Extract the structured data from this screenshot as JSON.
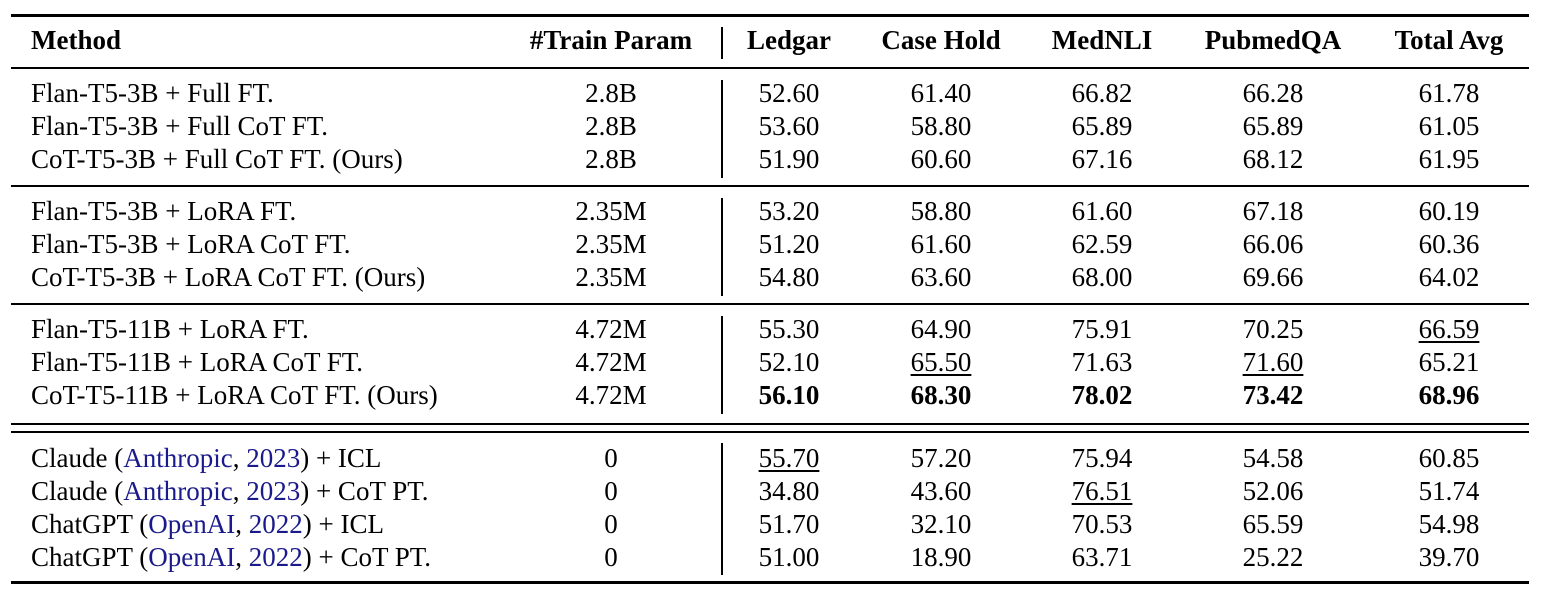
{
  "table": {
    "header": [
      "Method",
      "#Train Param",
      "Ledgar",
      "Case Hold",
      "MedNLI",
      "PubmedQA",
      "Total Avg"
    ],
    "groups": [
      [
        {
          "method": [
            {
              "t": "Flan-T5-3B + Full FT."
            }
          ],
          "param": "2.8B",
          "values": [
            "52.60",
            "61.40",
            "66.82",
            "66.28",
            "61.78"
          ]
        },
        {
          "method": [
            {
              "t": "Flan-T5-3B + Full CoT FT."
            }
          ],
          "param": "2.8B",
          "values": [
            "53.60",
            "58.80",
            "65.89",
            "65.89",
            "61.05"
          ]
        },
        {
          "method": [
            {
              "t": "CoT-T5-3B + Full CoT FT. (Ours)"
            }
          ],
          "param": "2.8B",
          "values": [
            "51.90",
            "60.60",
            "67.16",
            "68.12",
            "61.95"
          ]
        }
      ],
      [
        {
          "method": [
            {
              "t": "Flan-T5-3B + LoRA FT."
            }
          ],
          "param": "2.35M",
          "values": [
            "53.20",
            "58.80",
            "61.60",
            "67.18",
            "60.19"
          ]
        },
        {
          "method": [
            {
              "t": "Flan-T5-3B + LoRA CoT FT."
            }
          ],
          "param": "2.35M",
          "values": [
            "51.20",
            "61.60",
            "62.59",
            "66.06",
            "60.36"
          ]
        },
        {
          "method": [
            {
              "t": "CoT-T5-3B + LoRA CoT FT. (Ours)"
            }
          ],
          "param": "2.35M",
          "values": [
            "54.80",
            "63.60",
            "68.00",
            "69.66",
            "64.02"
          ]
        }
      ],
      [
        {
          "method": [
            {
              "t": "Flan-T5-11B + LoRA FT."
            }
          ],
          "param": "4.72M",
          "values": [
            "55.30",
            "64.90",
            "75.91",
            "70.25",
            "66.59"
          ],
          "underline": [
            4
          ]
        },
        {
          "method": [
            {
              "t": "Flan-T5-11B + LoRA CoT FT."
            }
          ],
          "param": "4.72M",
          "values": [
            "52.10",
            "65.50",
            "71.63",
            "71.60",
            "65.21"
          ],
          "underline": [
            1,
            3
          ]
        },
        {
          "method": [
            {
              "t": "CoT-T5-11B + LoRA CoT FT. (Ours)"
            }
          ],
          "param": "4.72M",
          "values": [
            "56.10",
            "68.30",
            "78.02",
            "73.42",
            "68.96"
          ],
          "bold": [
            0,
            1,
            2,
            3,
            4
          ]
        }
      ],
      [
        {
          "method": [
            {
              "t": "Claude ("
            },
            {
              "t": "Anthropic",
              "cite": true
            },
            {
              "t": ", "
            },
            {
              "t": "2023",
              "cite": true
            },
            {
              "t": ") + ICL"
            }
          ],
          "param": "0",
          "values": [
            "55.70",
            "57.20",
            "75.94",
            "54.58",
            "60.85"
          ],
          "underline": [
            0
          ]
        },
        {
          "method": [
            {
              "t": "Claude ("
            },
            {
              "t": "Anthropic",
              "cite": true
            },
            {
              "t": ", "
            },
            {
              "t": "2023",
              "cite": true
            },
            {
              "t": ") + CoT PT."
            }
          ],
          "param": "0",
          "values": [
            "34.80",
            "43.60",
            "76.51",
            "52.06",
            "51.74"
          ],
          "underline": [
            2
          ]
        },
        {
          "method": [
            {
              "t": "ChatGPT ("
            },
            {
              "t": "OpenAI",
              "cite": true
            },
            {
              "t": ", "
            },
            {
              "t": "2022",
              "cite": true
            },
            {
              "t": ") + ICL"
            }
          ],
          "param": "0",
          "values": [
            "51.70",
            "32.10",
            "70.53",
            "65.59",
            "54.98"
          ]
        },
        {
          "method": [
            {
              "t": "ChatGPT ("
            },
            {
              "t": "OpenAI",
              "cite": true
            },
            {
              "t": ", "
            },
            {
              "t": "2022",
              "cite": true
            },
            {
              "t": ") + CoT PT."
            }
          ],
          "param": "0",
          "values": [
            "51.00",
            "18.90",
            "63.71",
            "25.22",
            "39.70"
          ]
        }
      ]
    ]
  }
}
